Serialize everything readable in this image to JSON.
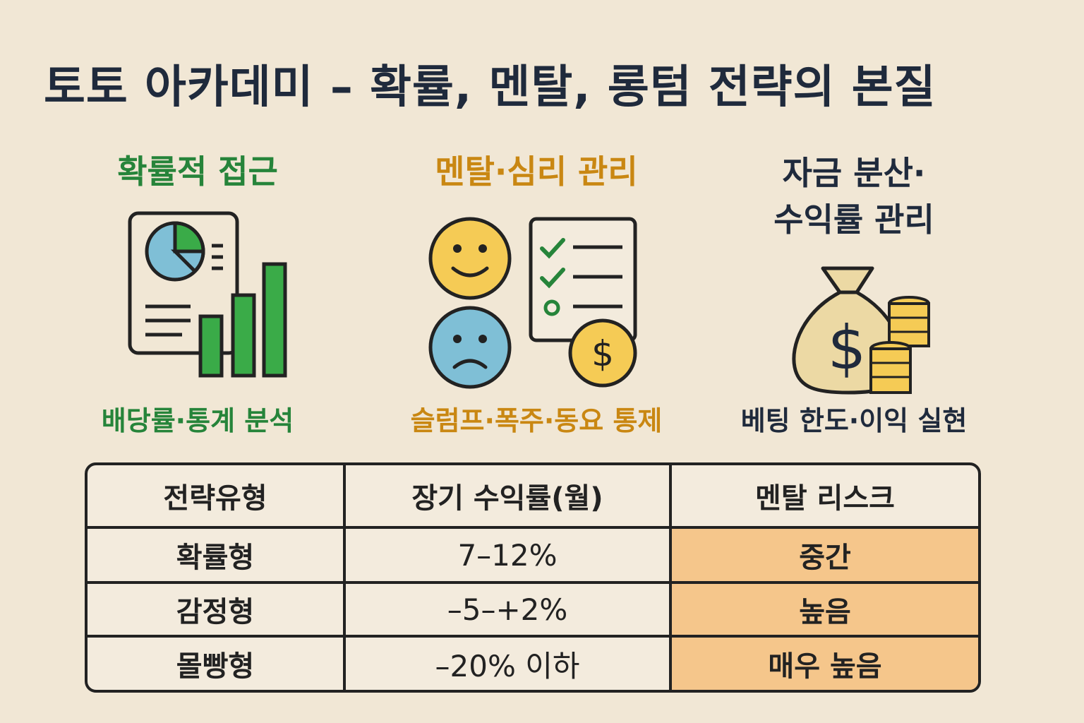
{
  "title": "토토 아카데미 – 확률, 멘탈, 롱텀 전략의 본질",
  "sections": [
    {
      "heading": "확률적 접근",
      "caption": "배당률·통계 분석",
      "icon": "chart-report-icon",
      "color": "#26843a"
    },
    {
      "heading": "멘탈·심리 관리",
      "caption": "슬럼프·폭주·동요 통제",
      "icon": "faces-checklist-coin-icon",
      "color": "#c98712"
    },
    {
      "heading_line1": "자금 분산·",
      "heading_line2": "수익률 관리",
      "caption": "베팅 한도·이익 실현",
      "icon": "money-bag-coins-icon",
      "color": "#1f2a3c"
    }
  ],
  "table": {
    "headers": [
      "전략유형",
      "장기 수익률(월)",
      "멘탈 리스크"
    ],
    "rows": [
      [
        "확률형",
        "7–12%",
        "중간"
      ],
      [
        "감정형",
        "–5–+2%",
        "높음"
      ],
      [
        "몰빵형",
        "–20% 이하",
        "매우 높음"
      ]
    ],
    "risk_color": "#f5c68b"
  }
}
